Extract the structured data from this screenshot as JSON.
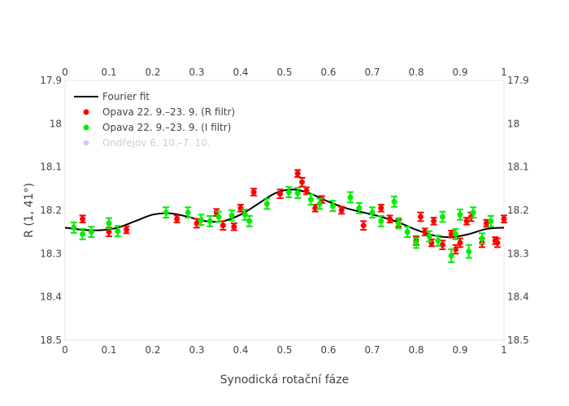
{
  "chart_data": {
    "type": "scatter",
    "xlabel": "Synodická rotační fáze",
    "ylabel": "R (1, 41°)",
    "xlim": [
      0,
      1
    ],
    "ylim": [
      18.5,
      17.9
    ],
    "y_reversed": true,
    "x_ticks": [
      "0",
      "0.1",
      "0.2",
      "0.3",
      "0.4",
      "0.5",
      "0.6",
      "0.7",
      "0.8",
      "0.9",
      "1"
    ],
    "y_ticks": [
      "17.9",
      "18",
      "18.1",
      "18.2",
      "18.3",
      "18.4",
      "18.5"
    ],
    "grid": false,
    "mirror_axes": true,
    "legend_position": "top-left",
    "legend": [
      {
        "name": "Fourier fit",
        "symbol": "line",
        "color": "#000000",
        "visible": true
      },
      {
        "name": "Opava 22. 9.–23. 9. (R filtr)",
        "symbol": "circle",
        "color": "#ff0000",
        "visible": true
      },
      {
        "name": "Opava 22. 9.–23. 9. (I filtr)",
        "symbol": "circle",
        "color": "#00ee00",
        "visible": true
      },
      {
        "name": "Ondřejov 6. 10.–7. 10.",
        "symbol": "circle",
        "color": "#bb88ee",
        "visible": false
      }
    ],
    "series": [
      {
        "name": "Fourier fit",
        "type": "line",
        "color": "#000000",
        "points": [
          [
            0.0,
            18.24
          ],
          [
            0.04,
            18.245
          ],
          [
            0.08,
            18.246
          ],
          [
            0.12,
            18.24
          ],
          [
            0.16,
            18.225
          ],
          [
            0.2,
            18.21
          ],
          [
            0.24,
            18.207
          ],
          [
            0.28,
            18.215
          ],
          [
            0.32,
            18.225
          ],
          [
            0.36,
            18.225
          ],
          [
            0.4,
            18.21
          ],
          [
            0.44,
            18.185
          ],
          [
            0.48,
            18.16
          ],
          [
            0.52,
            18.152
          ],
          [
            0.56,
            18.162
          ],
          [
            0.6,
            18.18
          ],
          [
            0.64,
            18.195
          ],
          [
            0.68,
            18.205
          ],
          [
            0.72,
            18.215
          ],
          [
            0.76,
            18.228
          ],
          [
            0.8,
            18.245
          ],
          [
            0.84,
            18.258
          ],
          [
            0.88,
            18.262
          ],
          [
            0.92,
            18.255
          ],
          [
            0.96,
            18.243
          ],
          [
            1.0,
            18.24
          ]
        ]
      },
      {
        "name": "Opava 22. 9.–23. 9. (R filtr)",
        "type": "scatter",
        "color": "#ff0000",
        "points": [
          [
            0.04,
            18.22,
            0.008
          ],
          [
            0.1,
            18.25,
            0.01
          ],
          [
            0.14,
            18.245,
            0.008
          ],
          [
            0.255,
            18.22,
            0.008
          ],
          [
            0.3,
            18.23,
            0.01
          ],
          [
            0.345,
            18.205,
            0.008
          ],
          [
            0.36,
            18.235,
            0.01
          ],
          [
            0.385,
            18.238,
            0.008
          ],
          [
            0.4,
            18.195,
            0.008
          ],
          [
            0.43,
            18.158,
            0.008
          ],
          [
            0.49,
            18.162,
            0.01
          ],
          [
            0.53,
            18.115,
            0.008
          ],
          [
            0.54,
            18.135,
            0.01
          ],
          [
            0.55,
            18.155,
            0.008
          ],
          [
            0.57,
            18.195,
            0.008
          ],
          [
            0.585,
            18.175,
            0.008
          ],
          [
            0.63,
            18.2,
            0.008
          ],
          [
            0.68,
            18.235,
            0.01
          ],
          [
            0.72,
            18.195,
            0.008
          ],
          [
            0.74,
            18.22,
            0.008
          ],
          [
            0.76,
            18.23,
            0.008
          ],
          [
            0.8,
            18.27,
            0.01
          ],
          [
            0.81,
            18.215,
            0.01
          ],
          [
            0.82,
            18.25,
            0.008
          ],
          [
            0.835,
            18.275,
            0.008
          ],
          [
            0.84,
            18.225,
            0.008
          ],
          [
            0.86,
            18.28,
            0.01
          ],
          [
            0.88,
            18.255,
            0.008
          ],
          [
            0.89,
            18.29,
            0.01
          ],
          [
            0.9,
            18.275,
            0.01
          ],
          [
            0.915,
            18.225,
            0.008
          ],
          [
            0.925,
            18.215,
            0.01
          ],
          [
            0.95,
            18.275,
            0.01
          ],
          [
            0.96,
            18.23,
            0.008
          ],
          [
            0.98,
            18.27,
            0.008
          ],
          [
            0.985,
            18.275,
            0.01
          ],
          [
            1.0,
            18.22,
            0.008
          ]
        ]
      },
      {
        "name": "Opava 22. 9.–23. 9. (I filtr)",
        "type": "scatter",
        "color": "#00ee00",
        "points": [
          [
            0.02,
            18.24,
            0.012
          ],
          [
            0.04,
            18.255,
            0.012
          ],
          [
            0.06,
            18.25,
            0.012
          ],
          [
            0.1,
            18.23,
            0.012
          ],
          [
            0.12,
            18.248,
            0.012
          ],
          [
            0.23,
            18.205,
            0.012
          ],
          [
            0.28,
            18.205,
            0.012
          ],
          [
            0.31,
            18.222,
            0.012
          ],
          [
            0.33,
            18.225,
            0.012
          ],
          [
            0.35,
            18.215,
            0.012
          ],
          [
            0.38,
            18.212,
            0.012
          ],
          [
            0.41,
            18.21,
            0.012
          ],
          [
            0.42,
            18.225,
            0.012
          ],
          [
            0.46,
            18.185,
            0.012
          ],
          [
            0.51,
            18.158,
            0.012
          ],
          [
            0.53,
            18.16,
            0.012
          ],
          [
            0.56,
            18.175,
            0.012
          ],
          [
            0.58,
            18.185,
            0.012
          ],
          [
            0.61,
            18.19,
            0.012
          ],
          [
            0.65,
            18.17,
            0.012
          ],
          [
            0.67,
            18.195,
            0.012
          ],
          [
            0.7,
            18.205,
            0.012
          ],
          [
            0.72,
            18.225,
            0.012
          ],
          [
            0.75,
            18.18,
            0.012
          ],
          [
            0.76,
            18.23,
            0.012
          ],
          [
            0.78,
            18.25,
            0.012
          ],
          [
            0.8,
            18.275,
            0.012
          ],
          [
            0.83,
            18.26,
            0.012
          ],
          [
            0.85,
            18.27,
            0.012
          ],
          [
            0.86,
            18.215,
            0.012
          ],
          [
            0.88,
            18.305,
            0.015
          ],
          [
            0.89,
            18.255,
            0.012
          ],
          [
            0.9,
            18.21,
            0.012
          ],
          [
            0.92,
            18.295,
            0.015
          ],
          [
            0.93,
            18.205,
            0.012
          ],
          [
            0.95,
            18.265,
            0.012
          ],
          [
            0.97,
            18.225,
            0.012
          ]
        ]
      }
    ]
  }
}
